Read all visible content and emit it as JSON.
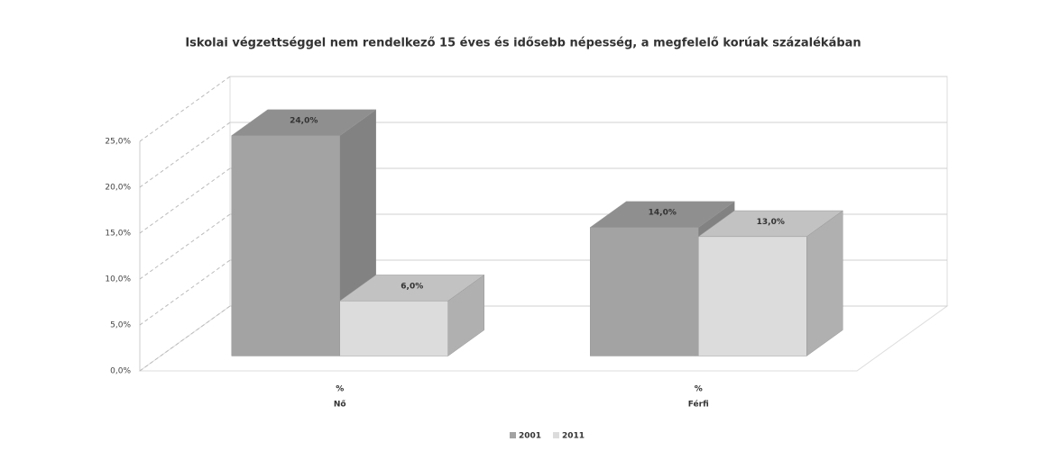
{
  "chart_data": {
    "type": "bar3d",
    "title": "Iskolai végzettséggel nem rendelkező 15 éves és idősebb népesség, a megfelelő korúak százalékában",
    "categories": [
      [
        "%",
        "Nő"
      ],
      [
        "%",
        "Férfi"
      ]
    ],
    "series": [
      {
        "name": "2001",
        "color": "#a3a3a3",
        "values": [
          24.0,
          14.0
        ],
        "value_labels": [
          "24,0%",
          "14,0%"
        ]
      },
      {
        "name": "2011",
        "color": "#dcdcdc",
        "values": [
          6.0,
          13.0
        ],
        "value_labels": [
          "6,0%",
          "13,0%"
        ]
      }
    ],
    "ylim": [
      0,
      25
    ],
    "yticks": [
      {
        "value": 0,
        "label": "0,0%"
      },
      {
        "value": 5,
        "label": "5,0%"
      },
      {
        "value": 10,
        "label": "10,0%"
      },
      {
        "value": 15,
        "label": "15,0%"
      },
      {
        "value": 20,
        "label": "20,0%"
      },
      {
        "value": 25,
        "label": "25,0%"
      }
    ],
    "grid": true,
    "legend": "bottom"
  }
}
